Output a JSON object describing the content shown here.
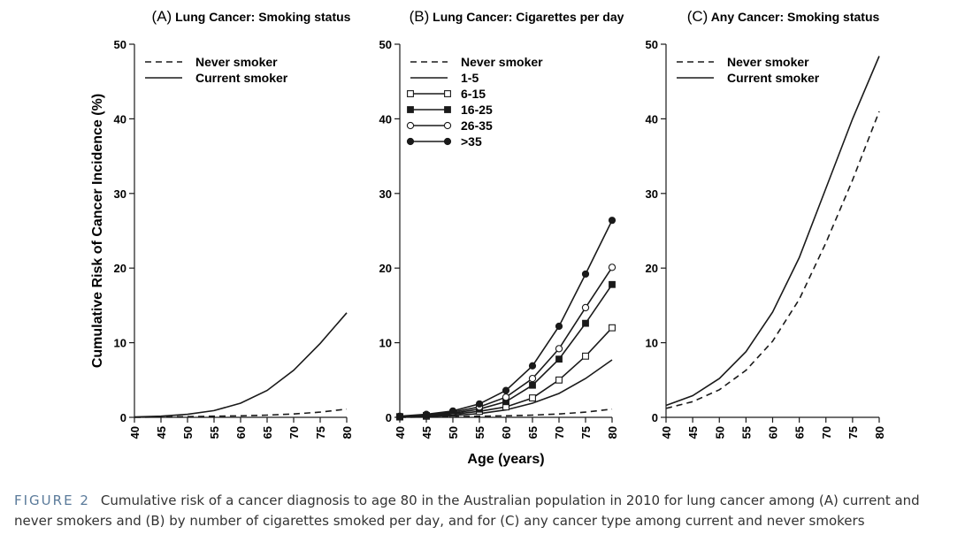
{
  "chart_data": [
    {
      "id": "A",
      "type": "line",
      "panel_letter": "(A)",
      "title": "Lung Cancer: Smoking status",
      "ylabel": "Cumulative Risk of Cancer Incidence (%)",
      "xlabel": "",
      "ylim": [
        0,
        50
      ],
      "xlim": [
        40,
        80
      ],
      "yticks": [
        0,
        10,
        20,
        30,
        40,
        50
      ],
      "xticks": [
        40,
        45,
        50,
        55,
        60,
        65,
        70,
        75,
        80
      ],
      "legend_position": "top-left",
      "series": [
        {
          "name": "Never smoker",
          "style": "dashed",
          "marker": "none",
          "x": [
            40,
            45,
            50,
            55,
            60,
            65,
            70,
            75,
            80
          ],
          "values": [
            0.0,
            0.05,
            0.1,
            0.15,
            0.2,
            0.3,
            0.45,
            0.7,
            1.1
          ]
        },
        {
          "name": "Current smoker",
          "style": "solid",
          "marker": "none",
          "x": [
            40,
            45,
            50,
            55,
            60,
            65,
            70,
            75,
            80
          ],
          "values": [
            0.05,
            0.15,
            0.4,
            0.9,
            1.9,
            3.6,
            6.3,
            9.9,
            14.0
          ]
        }
      ]
    },
    {
      "id": "B",
      "type": "line",
      "panel_letter": "(B)",
      "title": "Lung Cancer: Cigarettes per day",
      "ylabel": "",
      "xlabel": "Age (years)",
      "ylim": [
        0,
        50
      ],
      "xlim": [
        40,
        80
      ],
      "yticks": [
        0,
        10,
        20,
        30,
        40,
        50
      ],
      "xticks": [
        40,
        45,
        50,
        55,
        60,
        65,
        70,
        75,
        80
      ],
      "legend_position": "top-left",
      "series": [
        {
          "name": "Never smoker",
          "style": "dashed",
          "marker": "none",
          "x": [
            40,
            45,
            50,
            55,
            60,
            65,
            70,
            75,
            80
          ],
          "values": [
            0.0,
            0.05,
            0.1,
            0.15,
            0.2,
            0.3,
            0.45,
            0.7,
            1.1
          ]
        },
        {
          "name": "1-5",
          "style": "solid",
          "marker": "none",
          "x": [
            40,
            45,
            50,
            55,
            60,
            65,
            70,
            75,
            80
          ],
          "values": [
            0.05,
            0.1,
            0.25,
            0.5,
            1.0,
            1.9,
            3.2,
            5.2,
            7.7
          ]
        },
        {
          "name": "6-15",
          "style": "solid",
          "marker": "open-square",
          "x": [
            40,
            45,
            50,
            55,
            60,
            65,
            70,
            75,
            80
          ],
          "values": [
            0.05,
            0.15,
            0.4,
            0.8,
            1.4,
            2.6,
            5.0,
            8.2,
            12.0
          ]
        },
        {
          "name": "16-25",
          "style": "solid",
          "marker": "filled-square",
          "x": [
            40,
            45,
            50,
            55,
            60,
            65,
            70,
            75,
            80
          ],
          "values": [
            0.1,
            0.25,
            0.55,
            1.1,
            2.1,
            4.3,
            7.8,
            12.6,
            17.8
          ]
        },
        {
          "name": "26-35",
          "style": "solid",
          "marker": "open-circle",
          "x": [
            40,
            45,
            50,
            55,
            60,
            65,
            70,
            75,
            80
          ],
          "values": [
            0.1,
            0.3,
            0.7,
            1.4,
            2.7,
            5.2,
            9.2,
            14.7,
            20.1
          ]
        },
        {
          "name": ">35",
          "style": "solid",
          "marker": "filled-circle",
          "x": [
            40,
            45,
            50,
            55,
            60,
            65,
            70,
            75,
            80
          ],
          "values": [
            0.15,
            0.4,
            0.85,
            1.8,
            3.6,
            6.9,
            12.2,
            19.2,
            26.4
          ]
        }
      ]
    },
    {
      "id": "C",
      "type": "line",
      "panel_letter": "(C)",
      "title": "Any Cancer: Smoking status",
      "ylabel": "",
      "xlabel": "",
      "ylim": [
        0,
        50
      ],
      "xlim": [
        40,
        80
      ],
      "yticks": [
        0,
        10,
        20,
        30,
        40,
        50
      ],
      "xticks": [
        40,
        45,
        50,
        55,
        60,
        65,
        70,
        75,
        80
      ],
      "legend_position": "top-left",
      "series": [
        {
          "name": "Never smoker",
          "style": "dashed",
          "marker": "none",
          "x": [
            40,
            45,
            50,
            55,
            60,
            65,
            70,
            75,
            80
          ],
          "values": [
            1.2,
            2.1,
            3.7,
            6.3,
            10.2,
            15.8,
            23.4,
            31.8,
            41.0
          ]
        },
        {
          "name": "Current smoker",
          "style": "solid",
          "marker": "none",
          "x": [
            40,
            45,
            50,
            55,
            60,
            65,
            70,
            75,
            80
          ],
          "values": [
            1.6,
            2.9,
            5.2,
            8.8,
            14.1,
            21.4,
            30.7,
            40.0,
            48.4
          ]
        }
      ]
    }
  ],
  "caption": {
    "label": "FIGURE 2",
    "text": "Cumulative risk of a cancer diagnosis to age 80 in the Australian population in 2010 for lung cancer among (A) current and never smokers and (B) by number of cigarettes smoked per day, and for (C) any cancer type among current and never smokers"
  },
  "colors": {
    "line": "#1a1a1a",
    "caption_label": "#5a7a9a"
  }
}
